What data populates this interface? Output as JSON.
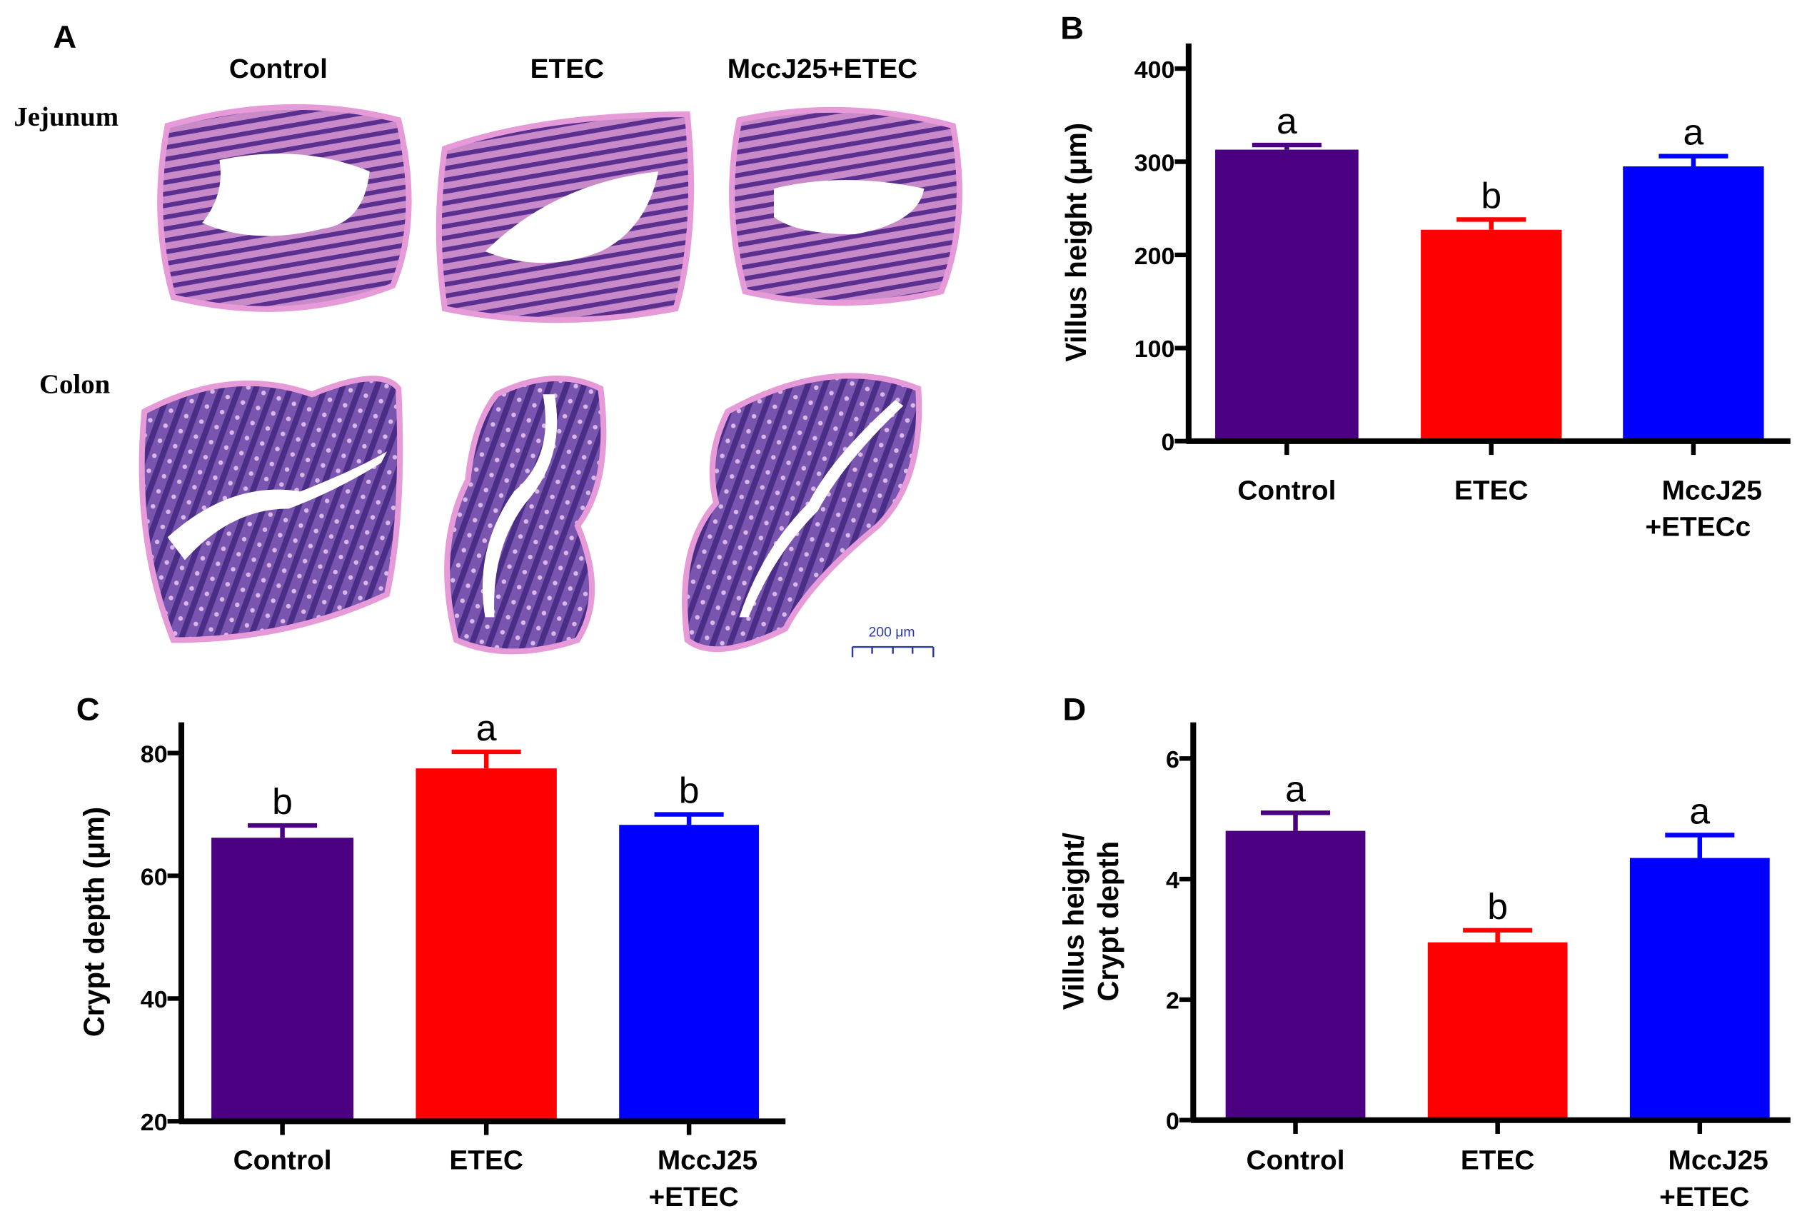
{
  "panel_a": {
    "letter": "A",
    "columns": [
      "Control",
      "ETEC",
      "MccJ25+ETEC"
    ],
    "rows": [
      "Jejunum",
      "Colon"
    ],
    "scale_bar": "200 μm"
  },
  "colors": {
    "control": "#4b0082",
    "etec": "#ff0000",
    "mccj25": "#0000ff"
  },
  "chart_data": [
    {
      "panel": "B",
      "type": "bar",
      "ylabel": "Villus height (μm)",
      "categories": [
        [
          "Control"
        ],
        [
          "ETEC"
        ],
        [
          "MccJ25",
          "+ETECc"
        ]
      ],
      "values": [
        313,
        227,
        295
      ],
      "errors": [
        5,
        11,
        11
      ],
      "significance": [
        "a",
        "b",
        "a"
      ],
      "ylim": [
        0,
        427
      ],
      "yticks": [
        0,
        100,
        200,
        300,
        400
      ],
      "grid": false
    },
    {
      "panel": "C",
      "type": "bar",
      "ylabel": "Crypt depth (μm)",
      "categories": [
        [
          "Control"
        ],
        [
          "ETEC"
        ],
        [
          "MccJ25",
          "+ETEC"
        ]
      ],
      "values": [
        66.2,
        77.5,
        68.3
      ],
      "errors": [
        2.0,
        2.7,
        1.7
      ],
      "significance": [
        "b",
        "a",
        "b"
      ],
      "ylim": [
        20,
        85
      ],
      "yticks": [
        20,
        40,
        60,
        80
      ],
      "grid": false
    },
    {
      "panel": "D",
      "type": "bar",
      "ylabel": [
        "Villus height/",
        "Crypt depth"
      ],
      "categories": [
        [
          "Control"
        ],
        [
          "ETEC"
        ],
        [
          "MccJ25",
          "+ETEC"
        ]
      ],
      "values": [
        4.8,
        2.95,
        4.35
      ],
      "errors": [
        0.3,
        0.2,
        0.38
      ],
      "significance": [
        "a",
        "b",
        "a"
      ],
      "ylim": [
        0,
        6.6
      ],
      "yticks": [
        0,
        2,
        4,
        6
      ],
      "grid": false
    }
  ]
}
